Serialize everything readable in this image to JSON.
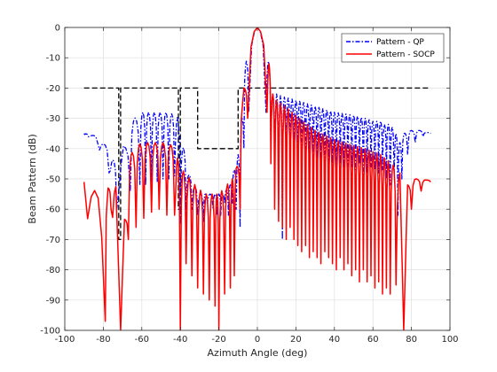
{
  "chart_data": {
    "type": "line",
    "xlabel": "Azimuth Angle (deg)",
    "ylabel": "Beam Pattern (dB)",
    "xlim": [
      -100,
      100
    ],
    "ylim": [
      -100,
      0
    ],
    "xticks": [
      -100,
      -80,
      -60,
      -40,
      -20,
      0,
      20,
      40,
      60,
      80,
      100
    ],
    "yticks": [
      0,
      -10,
      -20,
      -30,
      -40,
      -50,
      -60,
      -70,
      -80,
      -90,
      -100
    ],
    "grid": true,
    "legend_position": "top-right",
    "mask": {
      "points": [
        [
          -90,
          -20
        ],
        [
          -72,
          -20
        ],
        [
          -72,
          -70
        ],
        [
          -71,
          -70
        ],
        [
          -71,
          -20
        ],
        [
          -41,
          -20
        ],
        [
          -41,
          -60
        ],
        [
          -40,
          -60
        ],
        [
          -40,
          -20
        ],
        [
          -31,
          -20
        ],
        [
          -31,
          -40
        ],
        [
          -10,
          -40
        ],
        [
          -10,
          -20
        ],
        [
          90,
          -20
        ]
      ],
      "color": "#000000"
    },
    "series": [
      {
        "name": "Pattern - QP",
        "color": "#0000ff",
        "style": "dash-dot",
        "envelope": [
          [
            -90,
            -35
          ],
          [
            -83,
            -36
          ],
          [
            -78,
            -40
          ],
          [
            -74,
            -45
          ],
          [
            -72,
            -55
          ],
          [
            -70,
            -40
          ],
          [
            -66,
            -33
          ],
          [
            -62,
            -28
          ],
          [
            -58,
            -28
          ],
          [
            -54,
            -28
          ],
          [
            -50,
            -28
          ],
          [
            -46,
            -28
          ],
          [
            -43,
            -29
          ],
          [
            -41,
            -30
          ],
          [
            -39,
            -38
          ],
          [
            -36,
            -48
          ],
          [
            -33,
            -52
          ],
          [
            -30,
            -55
          ],
          [
            -26,
            -55
          ],
          [
            -22,
            -55
          ],
          [
            -18,
            -55
          ],
          [
            -14,
            -52
          ],
          [
            -12,
            -47
          ],
          [
            -10,
            -42
          ],
          [
            -8,
            -30
          ],
          [
            -6,
            -12
          ],
          [
            -3,
            -2
          ],
          [
            0,
            0
          ],
          [
            3,
            -2
          ],
          [
            6,
            -12
          ],
          [
            8,
            -22
          ],
          [
            10,
            -22
          ],
          [
            14,
            -23
          ],
          [
            20,
            -24
          ],
          [
            30,
            -26
          ],
          [
            40,
            -28
          ],
          [
            50,
            -29
          ],
          [
            56,
            -30
          ],
          [
            60,
            -31
          ],
          [
            64,
            -31
          ],
          [
            66,
            -32
          ],
          [
            68,
            -32
          ],
          [
            70,
            -33
          ],
          [
            72,
            -35
          ],
          [
            74,
            -38
          ],
          [
            76,
            -35
          ],
          [
            80,
            -34
          ],
          [
            84,
            -34
          ],
          [
            90,
            -35
          ]
        ],
        "nulls": [
          [
            -88,
            -36
          ],
          [
            -83,
            -38
          ],
          [
            -77,
            -48
          ],
          [
            -73,
            -60
          ],
          [
            -66,
            -54
          ],
          [
            -61,
            -52
          ],
          [
            -58,
            -52
          ],
          [
            -55,
            -51
          ],
          [
            -52,
            -51
          ],
          [
            -49,
            -50
          ],
          [
            -46,
            -50
          ],
          [
            -43,
            -49
          ],
          [
            -40,
            -65
          ],
          [
            -37,
            -62
          ],
          [
            -34,
            -60
          ],
          [
            -31,
            -62
          ],
          [
            -28,
            -64
          ],
          [
            -26,
            -58
          ],
          [
            -23,
            -60
          ],
          [
            -21,
            -62
          ],
          [
            -19,
            -62
          ],
          [
            -17,
            -58
          ],
          [
            -15,
            -62
          ],
          [
            -13,
            -58
          ],
          [
            -11,
            -60
          ],
          [
            -9,
            -66
          ],
          [
            -7,
            -40
          ],
          [
            -4.5,
            -28
          ],
          [
            4.5,
            -28
          ],
          [
            7,
            -40
          ],
          [
            9,
            -48
          ],
          [
            11,
            -58
          ],
          [
            13,
            -70
          ],
          [
            15,
            -48
          ],
          [
            17,
            -46
          ],
          [
            19,
            -48
          ],
          [
            21,
            -46
          ],
          [
            23,
            -48
          ],
          [
            25,
            -46
          ],
          [
            27,
            -48
          ],
          [
            29,
            -46
          ],
          [
            31,
            -48
          ],
          [
            33,
            -47
          ],
          [
            35,
            -49
          ],
          [
            37,
            -46
          ],
          [
            39,
            -48
          ],
          [
            41,
            -48
          ],
          [
            43,
            -45
          ],
          [
            45,
            -48
          ],
          [
            47,
            -47
          ],
          [
            49,
            -46
          ],
          [
            51,
            -47
          ],
          [
            53,
            -45
          ],
          [
            55,
            -50
          ],
          [
            57,
            -48
          ],
          [
            59,
            -46
          ],
          [
            61,
            -47
          ],
          [
            63,
            -48
          ],
          [
            65,
            -47
          ],
          [
            67,
            -50
          ],
          [
            69,
            -52
          ],
          [
            71,
            -48
          ],
          [
            73,
            -62
          ],
          [
            75,
            -50
          ],
          [
            78,
            -42
          ],
          [
            82,
            -38
          ],
          [
            86,
            -36
          ],
          [
            90,
            -35
          ]
        ]
      },
      {
        "name": "Pattern - SOCP",
        "color": "#ff0000",
        "style": "solid",
        "envelope": [
          [
            -90,
            -51
          ],
          [
            -85,
            -53
          ],
          [
            -82,
            -58
          ],
          [
            -80,
            -78
          ],
          [
            -77,
            -48
          ],
          [
            -74,
            -43
          ],
          [
            -71,
            -100
          ],
          [
            -68,
            -45
          ],
          [
            -64,
            -40
          ],
          [
            -60,
            -38
          ],
          [
            -56,
            -38
          ],
          [
            -52,
            -38
          ],
          [
            -48,
            -38
          ],
          [
            -44,
            -39
          ],
          [
            -41,
            -44
          ],
          [
            -39,
            -47
          ],
          [
            -35,
            -50
          ],
          [
            -31,
            -53
          ],
          [
            -27,
            -55
          ],
          [
            -24,
            -55
          ],
          [
            -20,
            -55
          ],
          [
            -16,
            -52
          ],
          [
            -13,
            -50
          ],
          [
            -10,
            -45
          ],
          [
            -8,
            -28
          ],
          [
            -6,
            -12
          ],
          [
            -3,
            -2
          ],
          [
            0,
            0
          ],
          [
            3,
            -2
          ],
          [
            6,
            -12
          ],
          [
            8,
            -22
          ],
          [
            10,
            -24
          ],
          [
            14,
            -26
          ],
          [
            20,
            -29
          ],
          [
            30,
            -34
          ],
          [
            40,
            -37
          ],
          [
            50,
            -39
          ],
          [
            56,
            -40
          ],
          [
            60,
            -41
          ],
          [
            64,
            -42
          ],
          [
            66,
            -43
          ],
          [
            70,
            -45
          ],
          [
            74,
            -48
          ],
          [
            76,
            -100
          ],
          [
            78,
            -52
          ],
          [
            82,
            -50
          ],
          [
            86,
            -50
          ],
          [
            90,
            -51
          ]
        ],
        "nulls": [
          [
            -79,
            -97
          ],
          [
            -76,
            -60
          ],
          [
            -71,
            -100
          ],
          [
            -67,
            -70
          ],
          [
            -63,
            -66
          ],
          [
            -59,
            -63
          ],
          [
            -55,
            -61
          ],
          [
            -51,
            -60
          ],
          [
            -47,
            -62
          ],
          [
            -43,
            -62
          ],
          [
            -40,
            -100
          ],
          [
            -37,
            -78
          ],
          [
            -34,
            -82
          ],
          [
            -31,
            -86
          ],
          [
            -28,
            -88
          ],
          [
            -25,
            -90
          ],
          [
            -22,
            -92
          ],
          [
            -20,
            -100
          ],
          [
            -17,
            -88
          ],
          [
            -14,
            -86
          ],
          [
            -12,
            -82
          ],
          [
            -9,
            -60
          ],
          [
            -5,
            -30
          ],
          [
            5,
            -28
          ],
          [
            7,
            -45
          ],
          [
            9,
            -60
          ],
          [
            11,
            -64
          ],
          [
            13,
            -66
          ],
          [
            15,
            -70
          ],
          [
            17,
            -66
          ],
          [
            19,
            -70
          ],
          [
            21,
            -72
          ],
          [
            23,
            -74
          ],
          [
            25,
            -72
          ],
          [
            27,
            -76
          ],
          [
            29,
            -74
          ],
          [
            31,
            -76
          ],
          [
            33,
            -78
          ],
          [
            35,
            -74
          ],
          [
            37,
            -76
          ],
          [
            39,
            -78
          ],
          [
            41,
            -80
          ],
          [
            43,
            -76
          ],
          [
            45,
            -80
          ],
          [
            47,
            -78
          ],
          [
            49,
            -82
          ],
          [
            51,
            -80
          ],
          [
            53,
            -84
          ],
          [
            55,
            -80
          ],
          [
            57,
            -84
          ],
          [
            59,
            -82
          ],
          [
            61,
            -86
          ],
          [
            63,
            -84
          ],
          [
            65,
            -88
          ],
          [
            67,
            -86
          ],
          [
            69,
            -88
          ],
          [
            72,
            -85
          ],
          [
            76,
            -100
          ],
          [
            80,
            -60
          ],
          [
            85,
            -54
          ],
          [
            90,
            -51
          ]
        ]
      }
    ]
  }
}
